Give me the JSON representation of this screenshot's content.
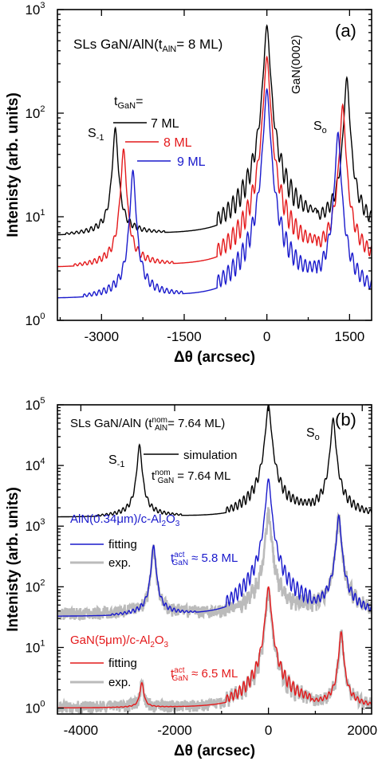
{
  "chart_data": [
    {
      "panel": "(a)",
      "type": "line",
      "title": "SLs GaN/AlN(t",
      "title_sub": "AlN",
      "title_tail": "= 8 ML)",
      "xlabel": "Δθ (arcsec)",
      "ylabel": "Intenisty (arb. units)",
      "xlim": [
        -3800,
        1900
      ],
      "ylim": [
        1,
        1000
      ],
      "yscale": "log",
      "xticks": [
        -3000,
        -1500,
        0,
        1500
      ],
      "xtick_labels": [
        "-3000",
        "-1500",
        "0",
        "1500"
      ],
      "yticks": [
        1,
        10,
        100,
        1000
      ],
      "ytick_labels": [
        "10",
        "10",
        "10",
        "10"
      ],
      "ytick_exps": [
        "0",
        "1",
        "2",
        "3"
      ],
      "legend_title": "t",
      "legend_title_sub": "GaN",
      "legend_title_tail": "=",
      "series": [
        {
          "name": "7 ML",
          "color": "#000000",
          "baseline": 6.5,
          "peaks": [
            {
              "x": -2750,
              "y": 72
            },
            {
              "x": 0,
              "y": 700
            },
            {
              "x": 1450,
              "y": 220
            }
          ]
        },
        {
          "name": "8 ML",
          "color": "#e41a1c",
          "baseline": 3.2,
          "peaks": [
            {
              "x": -2600,
              "y": 45
            },
            {
              "x": 0,
              "y": 350
            },
            {
              "x": 1375,
              "y": 120
            }
          ]
        },
        {
          "name": "9 ML",
          "color": "#1a1acc",
          "baseline": 1.6,
          "peaks": [
            {
              "x": -2430,
              "y": 28
            },
            {
              "x": 0,
              "y": 170
            },
            {
              "x": 1290,
              "y": 65
            }
          ]
        }
      ],
      "annotations": {
        "gan": "GaN(0002)",
        "s_minus": "S",
        "s_minus_sub": "-1",
        "s_zero": "S",
        "s_zero_sub": "o"
      }
    },
    {
      "panel": "(b)",
      "type": "line",
      "title": "SLs GaN/AlN (t",
      "title_sup": "nom",
      "title_sub": "AlN",
      "title_tail": "= 7.64 ML)",
      "xlabel": "Δθ (arcsec)",
      "ylabel": "Intenisty (arb. units)",
      "xlim": [
        -4500,
        2200
      ],
      "ylim": [
        0.8,
        100000
      ],
      "yscale": "log",
      "xticks": [
        -4000,
        -2000,
        0,
        2000
      ],
      "xtick_labels": [
        "-4000",
        "-2000",
        "0",
        "2000"
      ],
      "yticks": [
        1,
        10,
        100,
        1000,
        10000,
        100000
      ],
      "ytick_labels": [
        "10",
        "10",
        "10",
        "10",
        "10",
        "10"
      ],
      "ytick_exps": [
        "0",
        "1",
        "2",
        "3",
        "4",
        "5"
      ],
      "series": [
        {
          "name": "simulation",
          "color": "#000000",
          "baseline": 1400,
          "peaks": [
            {
              "x": -2750,
              "y": 22000
            },
            {
              "x": 0,
              "y": 100000
            },
            {
              "x": 1380,
              "y": 60000
            }
          ]
        },
        {
          "name": "exp.",
          "group": "AlN",
          "color": "#bbbbbb",
          "baseline": 35,
          "peaks": [
            {
              "x": -2450,
              "y": 420
            },
            {
              "x": 0,
              "y": 1600
            },
            {
              "x": 1500,
              "y": 1400
            }
          ]
        },
        {
          "name": "fitting",
          "group": "AlN",
          "color": "#1a1acc",
          "baseline": 32,
          "peaks": [
            {
              "x": -2450,
              "y": 480
            },
            {
              "x": 0,
              "y": 6000
            },
            {
              "x": 1500,
              "y": 1500
            }
          ]
        },
        {
          "name": "exp.",
          "group": "GaN",
          "color": "#bbbbbb",
          "baseline": 1.0,
          "peaks": [
            {
              "x": -2700,
              "y": 2.4
            },
            {
              "x": 0,
              "y": 80
            },
            {
              "x": 1550,
              "y": 16
            }
          ]
        },
        {
          "name": "fitting",
          "group": "GaN",
          "color": "#e41a1c",
          "baseline": 1.0,
          "peaks": [
            {
              "x": -2700,
              "y": 2.6
            },
            {
              "x": 0,
              "y": 100
            },
            {
              "x": 1550,
              "y": 18
            }
          ]
        }
      ],
      "annotations": {
        "s_minus": "S",
        "s_minus_sub": "-1",
        "s_zero": "S",
        "s_zero_sub": "o",
        "sim_label": "simulation",
        "sim_t": "t",
        "sim_t_sup": "nom",
        "sim_t_sub": "GaN",
        "sim_t_tail": "= 7.64 ML",
        "aln_substrate": "AlN(0.34μm)/c-Al",
        "aln_sub2": "2",
        "aln_o": "O",
        "aln_sub3": "3",
        "aln_fit": "fitting",
        "aln_exp": "exp.",
        "aln_t": "t",
        "aln_t_sup": "act",
        "aln_t_sub": "GaN",
        "aln_t_tail": "≈ 5.8 ML",
        "gan_substrate": "GaN(5μm)/c-Al",
        "gan_sub2": "2",
        "gan_o": "O",
        "gan_sub3": "3",
        "gan_fit": "fitting",
        "gan_exp": "exp.",
        "gan_t": "t",
        "gan_t_sup": "act",
        "gan_t_sub": "GaN",
        "gan_t_tail": "≈ 6.5 ML"
      }
    }
  ]
}
